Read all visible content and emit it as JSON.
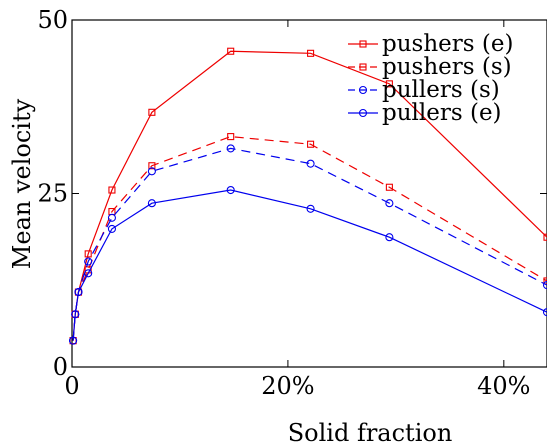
{
  "chart_data": {
    "type": "line",
    "xlabel": "Solid fraction",
    "ylabel": "Mean velocity",
    "xlim": [
      0,
      44
    ],
    "ylim": [
      0,
      50
    ],
    "x_ticks": [
      "0",
      "20%",
      "40%"
    ],
    "x_tick_values": [
      0,
      20,
      40
    ],
    "y_ticks": [
      "0",
      "25",
      "50"
    ],
    "y_tick_values": [
      0,
      25,
      50
    ],
    "grid": false,
    "legend_position": "top-right",
    "series": [
      {
        "name": "pushers (e)",
        "color": "#ee0000",
        "line_style": "solid",
        "marker": "square",
        "x": [
          0.1,
          0.3,
          0.6,
          1.5,
          3.7,
          7.4,
          14.7,
          22.1,
          29.4,
          44
        ],
        "y": [
          3.8,
          7.6,
          10.8,
          16.3,
          25.5,
          36.7,
          45.5,
          45.2,
          40.8,
          18.7
        ]
      },
      {
        "name": "pushers (s)",
        "color": "#ee0000",
        "line_style": "dashed",
        "marker": "square",
        "x": [
          0.1,
          0.3,
          0.6,
          1.5,
          3.7,
          7.4,
          14.7,
          22.1,
          29.4,
          44
        ],
        "y": [
          3.8,
          7.6,
          10.8,
          14.0,
          22.4,
          29.0,
          33.2,
          32.1,
          25.9,
          12.4
        ]
      },
      {
        "name": "pullers (s)",
        "color": "#0000ee",
        "line_style": "dashed",
        "marker": "circle",
        "x": [
          0.1,
          0.3,
          0.6,
          1.5,
          3.7,
          7.4,
          14.7,
          22.1,
          29.4,
          44
        ],
        "y": [
          3.8,
          7.6,
          10.8,
          15.2,
          21.5,
          28.2,
          31.5,
          29.3,
          23.6,
          11.8
        ]
      },
      {
        "name": "pullers (e)",
        "color": "#0000ee",
        "line_style": "solid",
        "marker": "circle",
        "x": [
          0.1,
          0.3,
          0.6,
          1.5,
          3.7,
          7.4,
          14.7,
          22.1,
          29.4,
          44
        ],
        "y": [
          3.8,
          7.6,
          10.8,
          13.5,
          19.9,
          23.6,
          25.5,
          22.8,
          18.7,
          7.9
        ]
      }
    ]
  }
}
